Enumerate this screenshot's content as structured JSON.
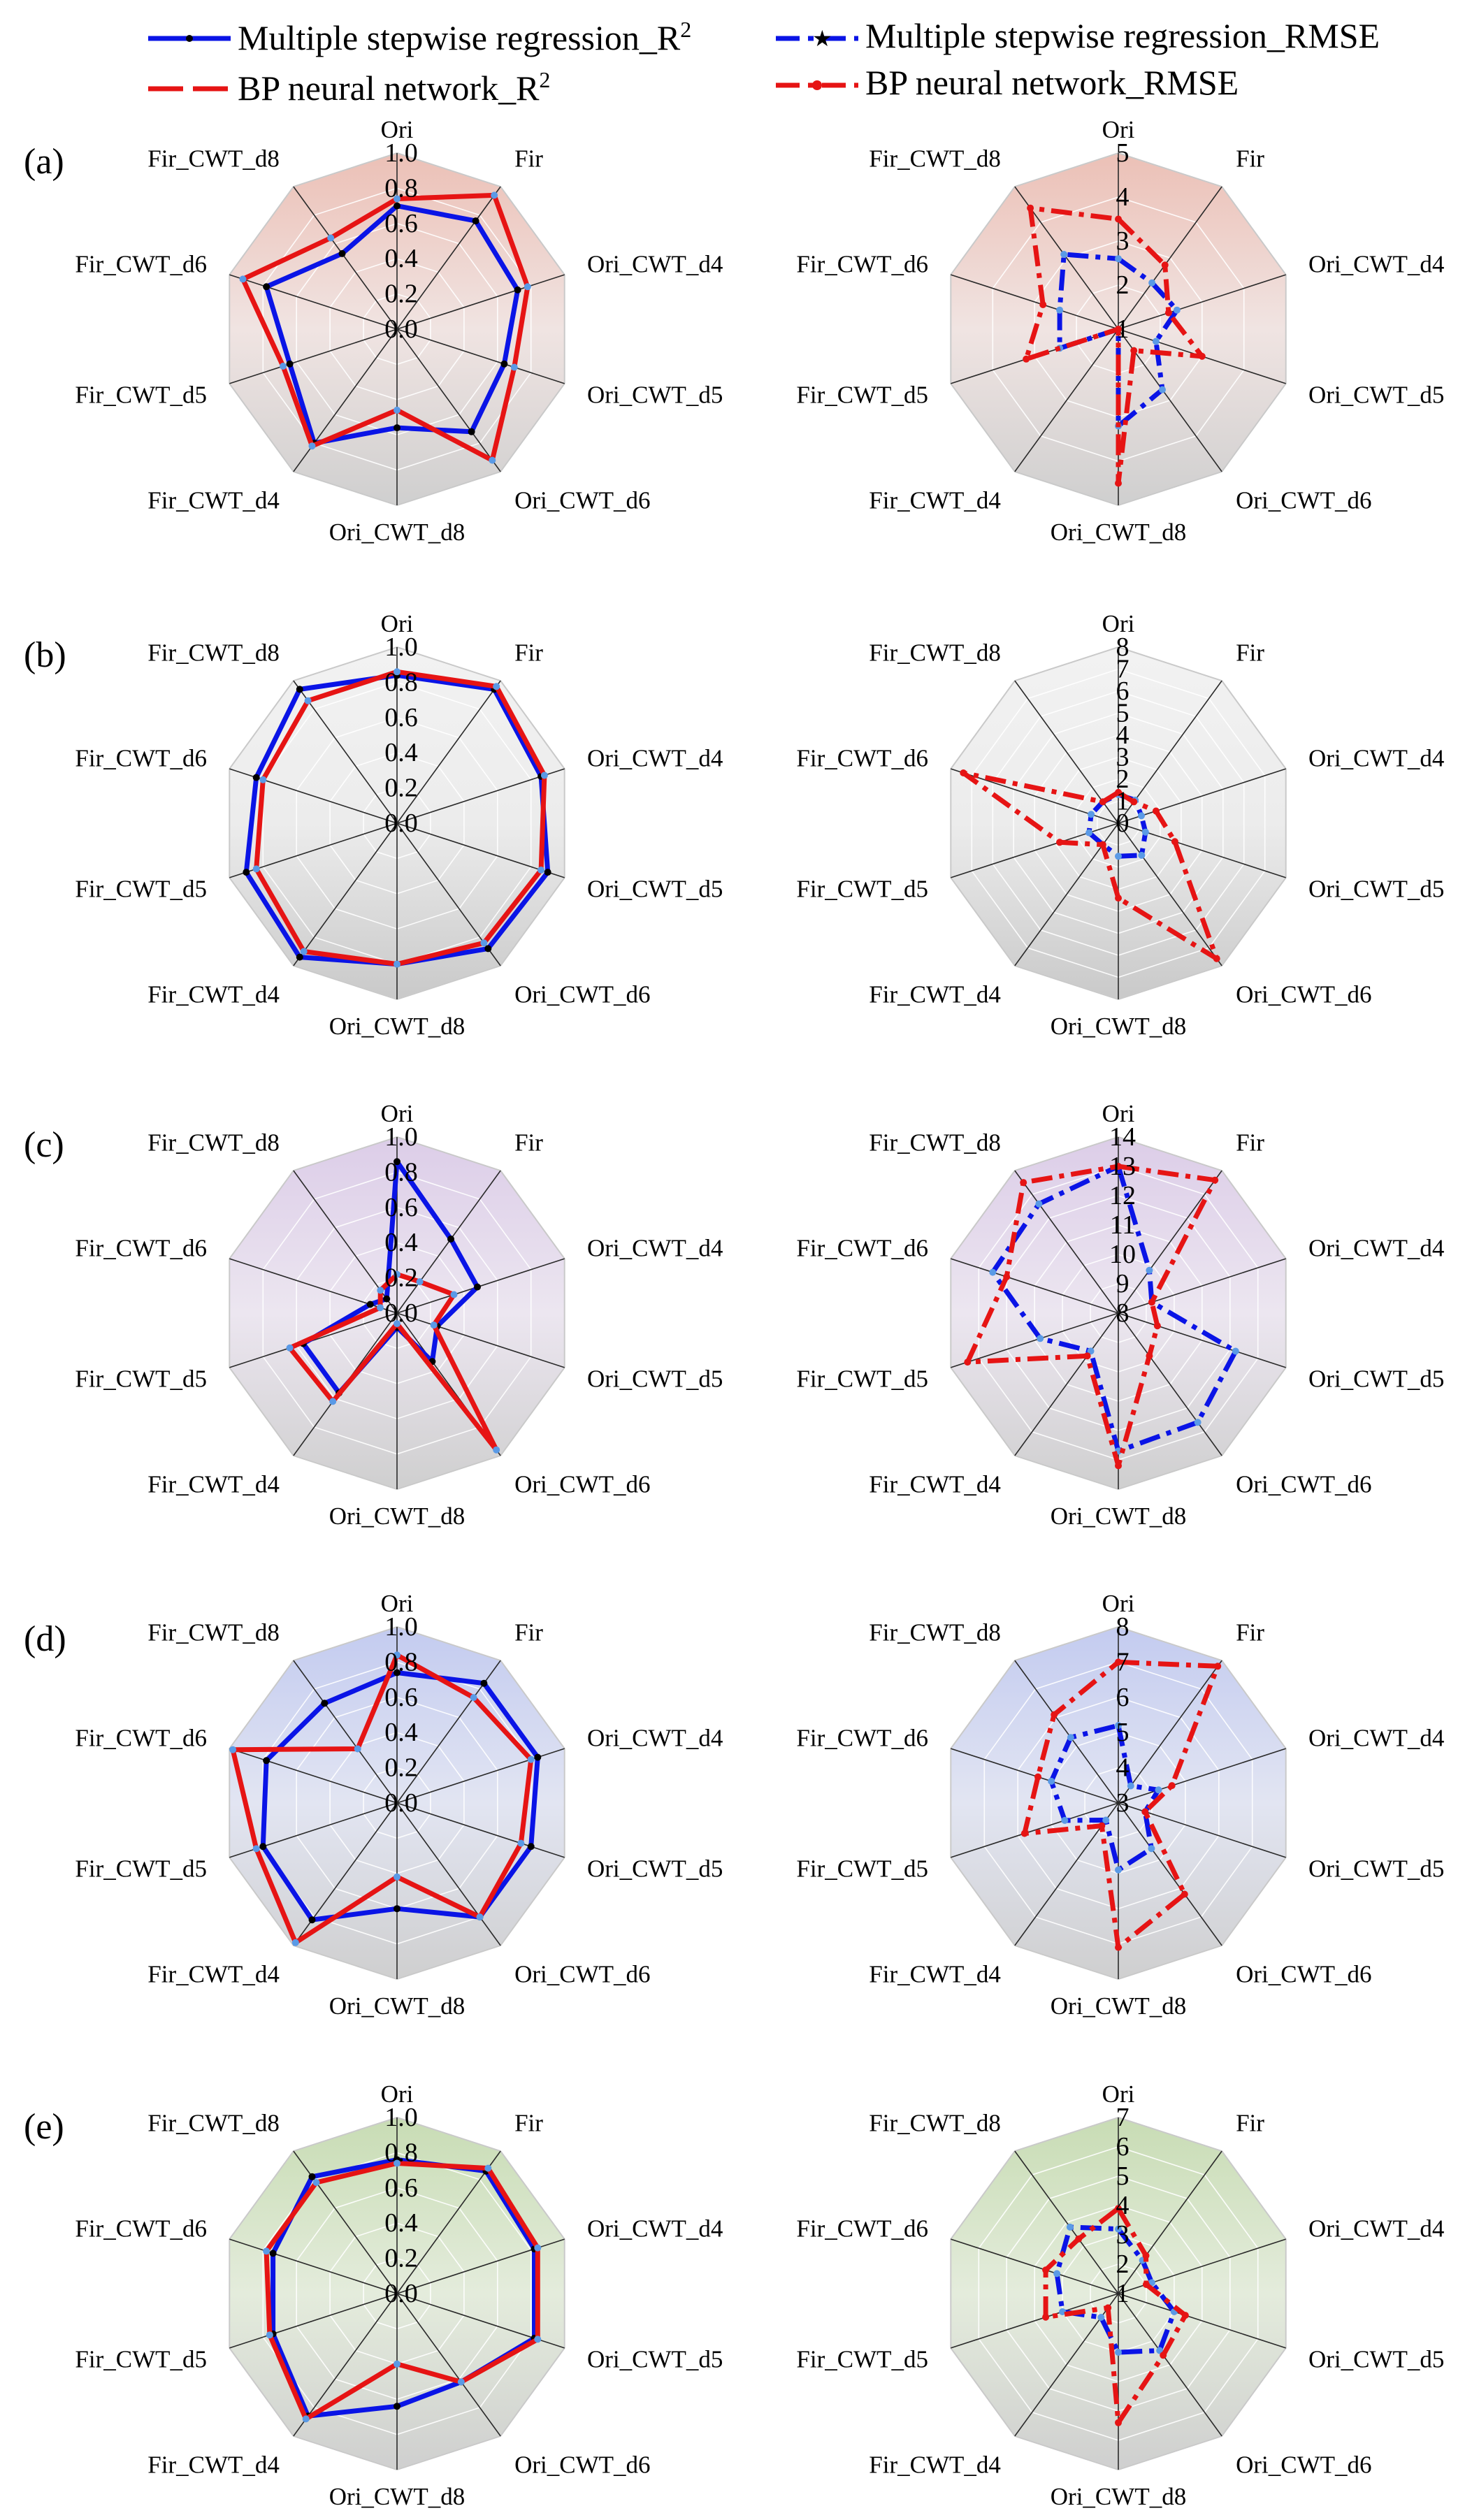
{
  "legend": {
    "items": [
      {
        "label": "Multiple stepwise regression_R",
        "sup": "2",
        "color": "#0a14e6",
        "dash": "solid",
        "marker": "black-dot"
      },
      {
        "label": "BP neural network_R",
        "sup": "2",
        "color": "#e61414",
        "dash": "long-dash",
        "marker": "none"
      },
      {
        "label": "Multiple stepwise regression_RMSE",
        "sup": "",
        "color": "#0a14e6",
        "dash": "dash-dot",
        "marker": "black-star"
      },
      {
        "label": "BP neural network_RMSE",
        "sup": "",
        "color": "#e61414",
        "dash": "dash-dot",
        "marker": "red-dot"
      }
    ]
  },
  "chart_data": [
    {
      "type": "radar",
      "panel": "(a)",
      "metric": "R2",
      "categories": [
        "Ori",
        "Fir",
        "Ori_CWT_d4",
        "Ori_CWT_d5",
        "Ori_CWT_d6",
        "Ori_CWT_d8",
        "Fir_CWT_d4",
        "Fir_CWT_d5",
        "Fir_CWT_d6",
        "Fir_CWT_d8"
      ],
      "ticks": [
        "0.0",
        "0.2",
        "0.4",
        "0.6",
        "0.8",
        "1.0"
      ],
      "range": [
        0,
        1
      ],
      "background": "#ecc0b6",
      "series": [
        {
          "name": "Multiple stepwise regression_R2",
          "values": [
            0.7,
            0.76,
            0.72,
            0.64,
            0.72,
            0.56,
            0.8,
            0.64,
            0.78,
            0.53
          ]
        },
        {
          "name": "BP neural network_R2",
          "values": [
            0.74,
            0.94,
            0.78,
            0.7,
            0.92,
            0.46,
            0.82,
            0.68,
            0.92,
            0.64
          ]
        }
      ]
    },
    {
      "type": "radar",
      "panel": "(a)",
      "metric": "RMSE",
      "categories": [
        "Ori",
        "Fir",
        "Ori_CWT_d4",
        "Ori_CWT_d5",
        "Ori_CWT_d6",
        "Ori_CWT_d8",
        "Fir_CWT_d4",
        "Fir_CWT_d5",
        "Fir_CWT_d6",
        "Fir_CWT_d8"
      ],
      "ticks": [
        "1",
        "2",
        "3",
        "4",
        "5"
      ],
      "range": [
        1,
        5
      ],
      "background": "#ecc0b6",
      "series": [
        {
          "name": "Multiple stepwise regression_RMSE",
          "values": [
            2.6,
            2.3,
            2.4,
            1.9,
            2.7,
            3.2,
            1.0,
            2.4,
            2.4,
            3.1
          ]
        },
        {
          "name": "BP neural network_RMSE",
          "values": [
            3.5,
            2.8,
            2.2,
            3.0,
            1.6,
            4.5,
            1.0,
            3.2,
            2.8,
            4.4
          ]
        }
      ]
    },
    {
      "type": "radar",
      "panel": "(b)",
      "metric": "R2",
      "categories": [
        "Ori",
        "Fir",
        "Ori_CWT_d4",
        "Ori_CWT_d5",
        "Ori_CWT_d6",
        "Ori_CWT_d8",
        "Fir_CWT_d4",
        "Fir_CWT_d5",
        "Fir_CWT_d6",
        "Fir_CWT_d8"
      ],
      "ticks": [
        "0.0",
        "0.2",
        "0.4",
        "0.6",
        "0.8",
        "1.0"
      ],
      "range": [
        0,
        1
      ],
      "background": "#e6e6e6",
      "series": [
        {
          "name": "Multiple stepwise regression_R2",
          "values": [
            0.84,
            0.94,
            0.86,
            0.9,
            0.88,
            0.8,
            0.94,
            0.9,
            0.84,
            0.94
          ]
        },
        {
          "name": "BP neural network_R2",
          "values": [
            0.86,
            0.96,
            0.88,
            0.86,
            0.84,
            0.8,
            0.9,
            0.84,
            0.8,
            0.86
          ]
        }
      ]
    },
    {
      "type": "radar",
      "panel": "(b)",
      "metric": "RMSE",
      "categories": [
        "Ori",
        "Fir",
        "Ori_CWT_d4",
        "Ori_CWT_d5",
        "Ori_CWT_d6",
        "Ori_CWT_d8",
        "Fir_CWT_d4",
        "Fir_CWT_d5",
        "Fir_CWT_d6",
        "Fir_CWT_d8"
      ],
      "ticks": [
        "0",
        "1",
        "2",
        "3",
        "4",
        "5",
        "6",
        "7",
        "8"
      ],
      "range": [
        0,
        8
      ],
      "background": "#e6e6e6",
      "series": [
        {
          "name": "Multiple stepwise regression_RMSE",
          "values": [
            1.3,
            1.3,
            1.1,
            1.3,
            1.8,
            1.5,
            1.2,
            1.4,
            1.3,
            1.2
          ]
        },
        {
          "name": "BP neural network_RMSE",
          "values": [
            1.4,
            1.2,
            1.8,
            2.7,
            7.6,
            3.4,
            1.2,
            2.8,
            7.4,
            1.2
          ]
        }
      ]
    },
    {
      "type": "radar",
      "panel": "(c)",
      "metric": "R2",
      "categories": [
        "Ori",
        "Fir",
        "Ori_CWT_d4",
        "Ori_CWT_d5",
        "Ori_CWT_d6",
        "Ori_CWT_d8",
        "Fir_CWT_d4",
        "Fir_CWT_d5",
        "Fir_CWT_d6",
        "Fir_CWT_d8"
      ],
      "ticks": [
        "0.0",
        "0.2",
        "0.4",
        "0.6",
        "0.8",
        "1.0"
      ],
      "range": [
        0,
        1
      ],
      "background": "#dccde8",
      "series": [
        {
          "name": "Multiple stepwise regression_R2",
          "values": [
            0.86,
            0.52,
            0.48,
            0.24,
            0.34,
            0.08,
            0.56,
            0.56,
            0.16,
            0.1
          ]
        },
        {
          "name": "BP neural network_R2",
          "values": [
            0.22,
            0.22,
            0.34,
            0.22,
            0.96,
            0.06,
            0.62,
            0.64,
            0.1,
            0.16
          ]
        }
      ]
    },
    {
      "type": "radar",
      "panel": "(c)",
      "metric": "RMSE",
      "categories": [
        "Ori",
        "Fir",
        "Ori_CWT_d4",
        "Ori_CWT_d5",
        "Ori_CWT_d6",
        "Ori_CWT_d8",
        "Fir_CWT_d4",
        "Fir_CWT_d5",
        "Fir_CWT_d6",
        "Fir_CWT_d8"
      ],
      "ticks": [
        "8",
        "9",
        "10",
        "11",
        "12",
        "13",
        "14"
      ],
      "range": [
        8,
        14
      ],
      "background": "#dccde8",
      "series": [
        {
          "name": "Multiple stepwise regression_RMSE",
          "values": [
            13.0,
            9.8,
            9.2,
            12.2,
            12.6,
            12.7,
            9.6,
            10.8,
            12.5,
            12.6
          ]
        },
        {
          "name": "BP neural network_RMSE",
          "values": [
            13.0,
            13.6,
            9.2,
            9.4,
            9.8,
            13.2,
            9.8,
            13.4,
            12.0,
            13.5
          ]
        }
      ]
    },
    {
      "type": "radar",
      "panel": "(d)",
      "metric": "R2",
      "categories": [
        "Ori",
        "Fir",
        "Ori_CWT_d4",
        "Ori_CWT_d5",
        "Ori_CWT_d6",
        "Ori_CWT_d8",
        "Fir_CWT_d4",
        "Fir_CWT_d5",
        "Fir_CWT_d6",
        "Fir_CWT_d8"
      ],
      "ticks": [
        "0.0",
        "0.2",
        "0.4",
        "0.6",
        "0.8",
        "1.0"
      ],
      "range": [
        0,
        1
      ],
      "background": "#c3cbf0",
      "series": [
        {
          "name": "Multiple stepwise regression_R2",
          "values": [
            0.74,
            0.84,
            0.84,
            0.8,
            0.8,
            0.6,
            0.82,
            0.8,
            0.78,
            0.7
          ]
        },
        {
          "name": "BP neural network_R2",
          "values": [
            0.84,
            0.74,
            0.8,
            0.74,
            0.8,
            0.42,
            0.98,
            0.84,
            0.98,
            0.38
          ]
        }
      ]
    },
    {
      "type": "radar",
      "panel": "(d)",
      "metric": "RMSE",
      "categories": [
        "Ori",
        "Fir",
        "Ori_CWT_d4",
        "Ori_CWT_d5",
        "Ori_CWT_d6",
        "Ori_CWT_d8",
        "Fir_CWT_d4",
        "Fir_CWT_d5",
        "Fir_CWT_d6",
        "Fir_CWT_d8"
      ],
      "ticks": [
        "3",
        "4",
        "5",
        "6",
        "7",
        "8"
      ],
      "range": [
        3,
        8
      ],
      "background": "#c3cbf0",
      "series": [
        {
          "name": "Multiple stepwise regression_RMSE",
          "values": [
            5.2,
            3.6,
            4.2,
            3.8,
            4.6,
            4.9,
            3.6,
            4.6,
            5.0,
            5.3
          ]
        },
        {
          "name": "BP neural network_RMSE",
          "values": [
            7.0,
            7.8,
            4.6,
            3.8,
            6.2,
            7.1,
            3.8,
            5.8,
            5.4,
            6.1
          ]
        }
      ]
    },
    {
      "type": "radar",
      "panel": "(e)",
      "metric": "R2",
      "categories": [
        "Ori",
        "Fir",
        "Ori_CWT_d4",
        "Ori_CWT_d5",
        "Ori_CWT_d6",
        "Ori_CWT_d8",
        "Fir_CWT_d4",
        "Fir_CWT_d5",
        "Fir_CWT_d6",
        "Fir_CWT_d8"
      ],
      "ticks": [
        "0.0",
        "0.2",
        "0.4",
        "0.6",
        "0.8",
        "1.0"
      ],
      "range": [
        0,
        1
      ],
      "background": "#c8dcb4",
      "series": [
        {
          "name": "Multiple stepwise regression_R2",
          "values": [
            0.76,
            0.86,
            0.82,
            0.82,
            0.62,
            0.64,
            0.86,
            0.74,
            0.74,
            0.82
          ]
        },
        {
          "name": "BP neural network_R2",
          "values": [
            0.74,
            0.88,
            0.84,
            0.84,
            0.62,
            0.4,
            0.88,
            0.76,
            0.78,
            0.78
          ]
        }
      ]
    },
    {
      "type": "radar",
      "panel": "(e)",
      "metric": "RMSE",
      "categories": [
        "Ori",
        "Fir",
        "Ori_CWT_d4",
        "Ori_CWT_d5",
        "Ori_CWT_d6",
        "Ori_CWT_d8",
        "Fir_CWT_d4",
        "Fir_CWT_d5",
        "Fir_CWT_d6",
        "Fir_CWT_d8"
      ],
      "ticks": [
        "1",
        "2",
        "3",
        "4",
        "5",
        "6",
        "7"
      ],
      "range": [
        1,
        7
      ],
      "background": "#c8dcb4",
      "series": [
        {
          "name": "Multiple stepwise regression_RMSE",
          "values": [
            3.2,
            2.4,
            2.2,
            3.0,
            3.4,
            3.0,
            2.0,
            3.0,
            3.2,
            3.8
          ]
        },
        {
          "name": "BP neural network_RMSE",
          "values": [
            3.9,
            2.6,
            2.0,
            3.4,
            3.6,
            5.4,
            1.6,
            3.6,
            3.6,
            3.3
          ]
        }
      ]
    }
  ]
}
